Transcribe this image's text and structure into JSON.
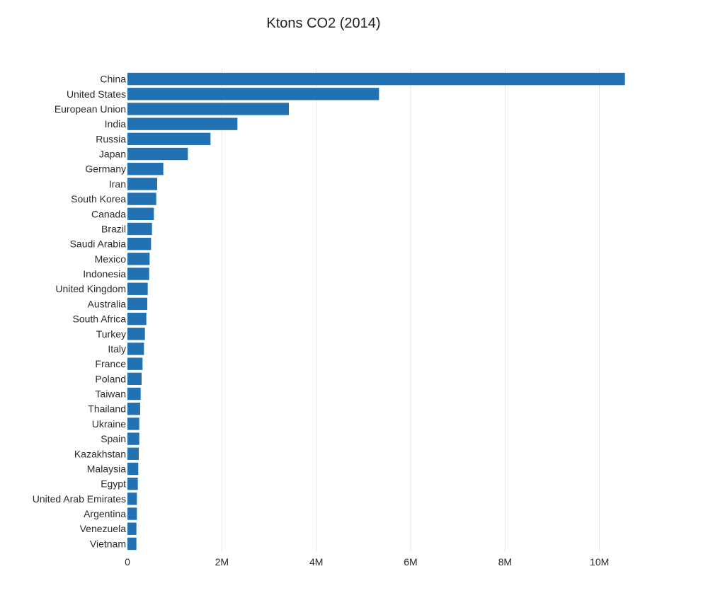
{
  "chart_data": {
    "type": "bar",
    "orientation": "horizontal",
    "title": "Ktons CO2 (2014)",
    "xlabel": "",
    "ylabel": "",
    "xlim": [
      0,
      10800000
    ],
    "x_ticks": [
      0,
      2000000,
      4000000,
      6000000,
      8000000,
      10000000
    ],
    "x_tick_labels": [
      "0",
      "2M",
      "4M",
      "6M",
      "8M",
      "10M"
    ],
    "grid": true,
    "legend": "none",
    "bar_color": "#2271b3",
    "categories": [
      "China",
      "United States",
      "European Union",
      "India",
      "Russia",
      "Japan",
      "Germany",
      "Iran",
      "South Korea",
      "Canada",
      "Brazil",
      "Saudi Arabia",
      "Mexico",
      "Indonesia",
      "United Kingdom",
      "Australia",
      "South Africa",
      "Turkey",
      "Italy",
      "France",
      "Poland",
      "Taiwan",
      "Thailand",
      "Ukraine",
      "Spain",
      "Kazakhstan",
      "Malaysia",
      "Egypt",
      "United Arab Emirates",
      "Argentina",
      "Venezuela",
      "Vietnam"
    ],
    "values": [
      10540000,
      5330000,
      3420000,
      2330000,
      1760000,
      1280000,
      760000,
      630000,
      610000,
      560000,
      520000,
      500000,
      470000,
      460000,
      430000,
      420000,
      400000,
      370000,
      350000,
      320000,
      300000,
      280000,
      270000,
      250000,
      250000,
      240000,
      230000,
      220000,
      200000,
      200000,
      190000,
      190000
    ]
  }
}
